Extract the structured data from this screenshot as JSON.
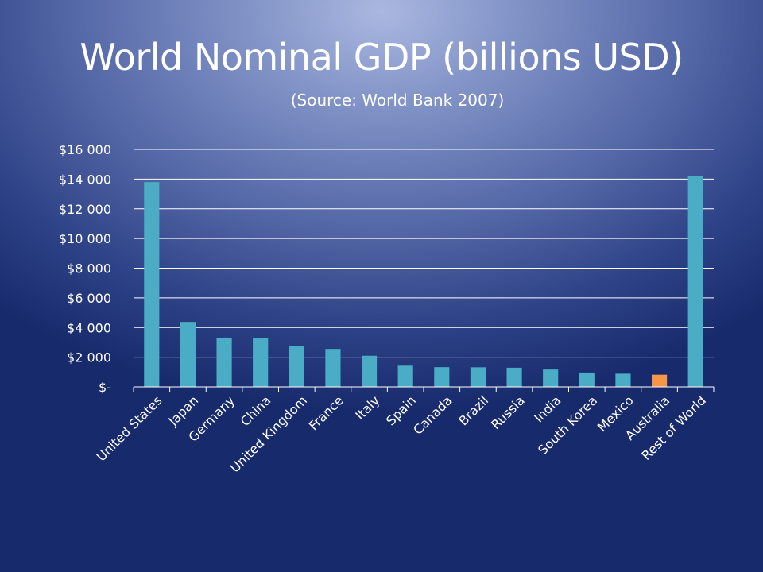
{
  "chart_data": {
    "type": "bar",
    "title": "World Nominal GDP (billions USD)",
    "subtitle": "(Source: World Bank 2007)",
    "xlabel": "",
    "ylabel": "",
    "ylim": [
      0,
      16000
    ],
    "yticks": [
      0,
      2000,
      4000,
      6000,
      8000,
      10000,
      12000,
      14000,
      16000
    ],
    "ytick_labels": [
      "$-",
      "$2 000",
      "$4 000",
      "$6 000",
      "$8 000",
      "$10 000",
      "$12 000",
      "$14 000",
      "$16 000"
    ],
    "grid": true,
    "categories": [
      "United States",
      "Japan",
      "Germany",
      "China",
      "United Kingdom",
      "France",
      "Italy",
      "Spain",
      "Canada",
      "Brazil",
      "Russia",
      "India",
      "South Korea",
      "Mexico",
      "Australia",
      "Rest of World"
    ],
    "values": [
      13800,
      4380,
      3320,
      3280,
      2770,
      2560,
      2100,
      1430,
      1330,
      1320,
      1290,
      1170,
      970,
      890,
      820,
      14200
    ],
    "highlight_category": "Australia",
    "colors": {
      "bar": "#4bacc6",
      "highlight": "#f79646",
      "grid": "#ffffff",
      "text": "#ffffff"
    }
  }
}
